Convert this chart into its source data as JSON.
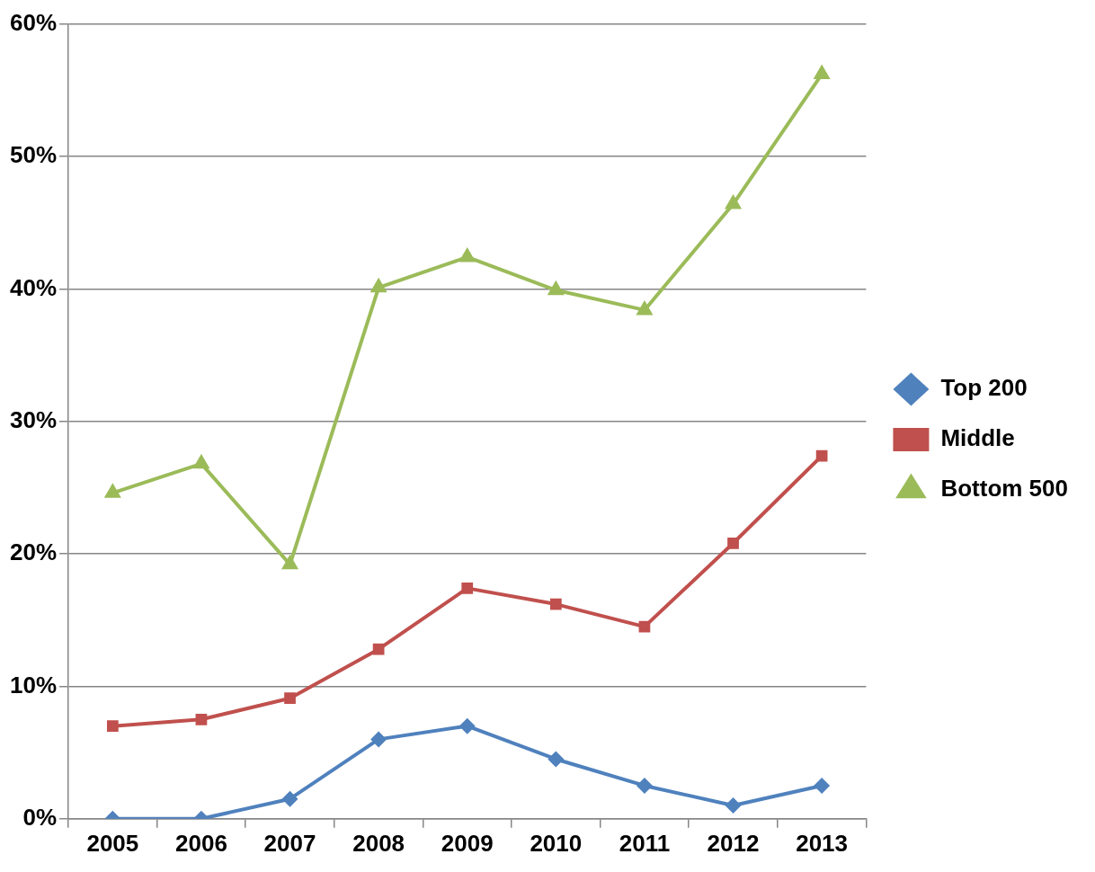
{
  "chart_data": {
    "type": "line",
    "categories": [
      "2005",
      "2006",
      "2007",
      "2008",
      "2009",
      "2010",
      "2011",
      "2012",
      "2013"
    ],
    "ylim": [
      0,
      60
    ],
    "yticks": [
      {
        "value": 0,
        "label": "0%"
      },
      {
        "value": 10,
        "label": "10%"
      },
      {
        "value": 20,
        "label": "20%"
      },
      {
        "value": 30,
        "label": "30%"
      },
      {
        "value": 40,
        "label": "40%"
      },
      {
        "value": 50,
        "label": "50%"
      },
      {
        "value": 60,
        "label": "60%"
      }
    ],
    "grid": "y",
    "legend": "right",
    "line_style": "solid",
    "series": [
      {
        "name": "Top 200",
        "color": "#4f81bd",
        "marker": "diamond",
        "values": [
          0,
          0,
          1.5,
          6.0,
          7.0,
          4.5,
          2.5,
          1.0,
          2.5
        ]
      },
      {
        "name": "Middle",
        "color": "#c0504d",
        "marker": "square",
        "values": [
          7.0,
          7.5,
          9.1,
          12.8,
          17.4,
          16.2,
          14.5,
          20.8,
          27.4
        ]
      },
      {
        "name": "Bottom 500",
        "color": "#9bbb59",
        "marker": "triangle",
        "values": [
          24.6,
          26.8,
          19.2,
          40.1,
          42.4,
          39.9,
          38.4,
          46.4,
          56.2
        ]
      }
    ]
  }
}
